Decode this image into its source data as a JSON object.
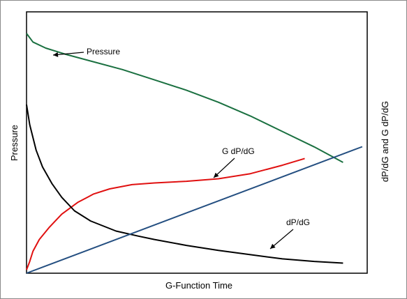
{
  "chart_data": {
    "type": "line",
    "title": "",
    "xlabel": "G-Function Time",
    "ylabel_left": "Pressure",
    "ylabel_right": "dP/dG and G dP/dG",
    "xlim": [
      0,
      100
    ],
    "ylim": [
      0,
      100
    ],
    "grid": false,
    "legend": "none",
    "series": [
      {
        "name": "Pressure",
        "axis": "left",
        "color": "#1a7040",
        "x": [
          0,
          2,
          6,
          12,
          20,
          30,
          40,
          50,
          60,
          70,
          80,
          90,
          99
        ],
        "y": [
          100,
          95,
          91.5,
          88,
          84,
          79,
          73,
          67,
          60,
          52,
          43,
          34,
          25
        ]
      },
      {
        "name": "G dP/dG",
        "axis": "right",
        "color": "#e01010",
        "x": [
          0,
          1,
          2,
          4,
          7,
          11,
          16,
          21,
          26,
          33,
          40,
          50,
          60,
          70,
          80,
          87
        ],
        "y": [
          2,
          7,
          13,
          20,
          27,
          35,
          42,
          47,
          50,
          52.5,
          53.5,
          54.5,
          56,
          59,
          64,
          68
        ]
      },
      {
        "name": "dP/dG",
        "axis": "right",
        "color": "#000000",
        "x": [
          0,
          1,
          3,
          5,
          8,
          11,
          15,
          20,
          28,
          35,
          40,
          50,
          60,
          70,
          80,
          90,
          99
        ],
        "y": [
          100,
          88,
          73,
          63,
          53,
          45,
          37,
          31,
          25,
          22,
          20,
          16.5,
          13.5,
          11,
          8.5,
          7,
          6
        ]
      },
      {
        "name": "",
        "axis": "right",
        "color": "#234e80",
        "x": [
          0,
          105
        ],
        "y": [
          0,
          75
        ]
      }
    ],
    "annotations": [
      {
        "text": "Pressure",
        "series": "Pressure"
      },
      {
        "text": "G dP/dG",
        "series": "G dP/dG"
      },
      {
        "text": "dP/dG",
        "series": "dP/dG"
      }
    ]
  }
}
